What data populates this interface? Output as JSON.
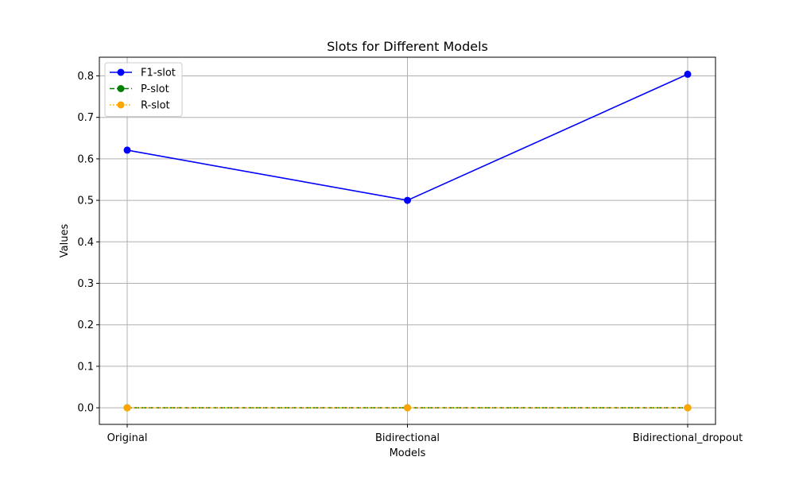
{
  "chart_data": {
    "type": "line",
    "title": "Slots for Different Models",
    "xlabel": "Models",
    "ylabel": "Values",
    "categories": [
      "Original",
      "Bidirectional",
      "Bidirectional_dropout"
    ],
    "ylim": [
      -0.04,
      0.845
    ],
    "yticks": [
      0.0,
      0.1,
      0.2,
      0.3,
      0.4,
      0.5,
      0.6,
      0.7,
      0.8
    ],
    "ytick_labels": [
      "0.0",
      "0.1",
      "0.2",
      "0.3",
      "0.4",
      "0.5",
      "0.6",
      "0.7",
      "0.8"
    ],
    "grid": true,
    "legend_position": "top-left",
    "series": [
      {
        "name": "F1-slot",
        "values": [
          0.621,
          0.5,
          0.804
        ],
        "color": "#0000ff",
        "linestyle": "solid",
        "marker": "circle"
      },
      {
        "name": "P-slot",
        "values": [
          0.0,
          0.0,
          0.0
        ],
        "color": "#008000",
        "linestyle": "dashed",
        "marker": "circle"
      },
      {
        "name": "R-slot",
        "values": [
          0.0,
          0.0,
          0.0
        ],
        "color": "#ffa500",
        "linestyle": "dotted",
        "marker": "circle"
      }
    ]
  }
}
